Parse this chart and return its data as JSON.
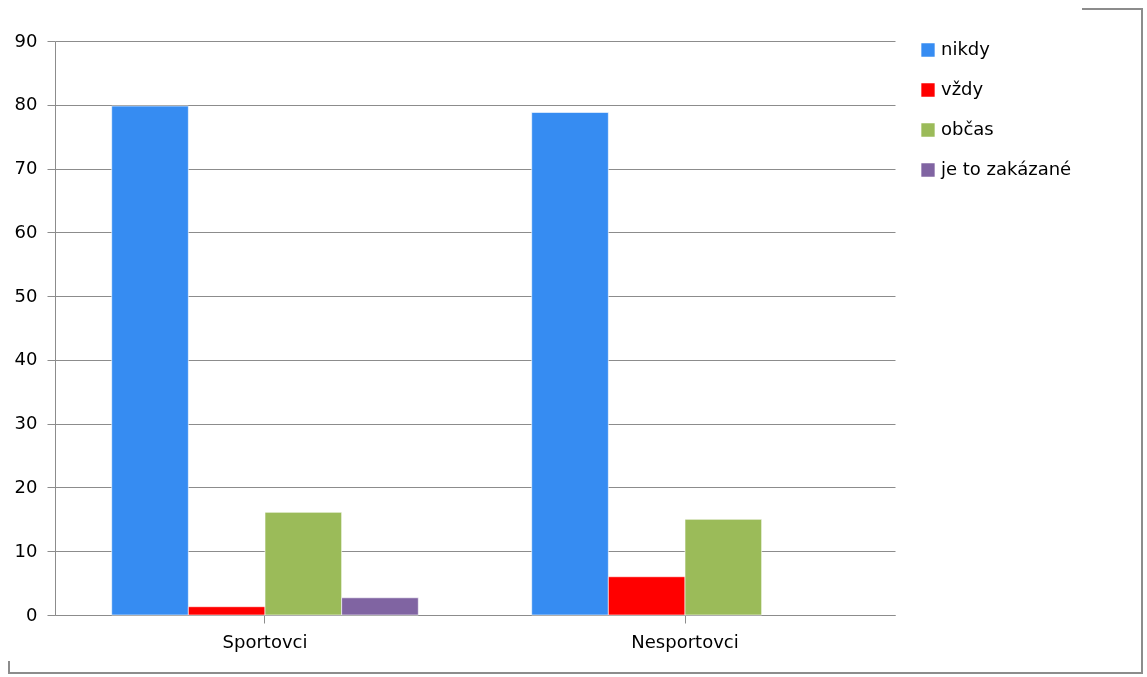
{
  "chart_data": {
    "type": "bar",
    "categories": [
      "Sportovci",
      "Nesportovci"
    ],
    "series": [
      {
        "name": "nikdy",
        "color": "#368cf2",
        "values": [
          79.8,
          78.8
        ]
      },
      {
        "name": "vždy",
        "color": "#ff0000",
        "values": [
          1.3,
          6.0
        ]
      },
      {
        "name": "občas",
        "color": "#9bbb59",
        "values": [
          16.1,
          15.0
        ]
      },
      {
        "name": "je to zakázané",
        "color": "#8064a2",
        "values": [
          2.7,
          null
        ]
      }
    ],
    "ylim": [
      0,
      90
    ],
    "yticks": [
      0,
      10,
      20,
      30,
      40,
      50,
      60,
      70,
      80,
      90
    ],
    "grid": "y",
    "legend": "right"
  }
}
